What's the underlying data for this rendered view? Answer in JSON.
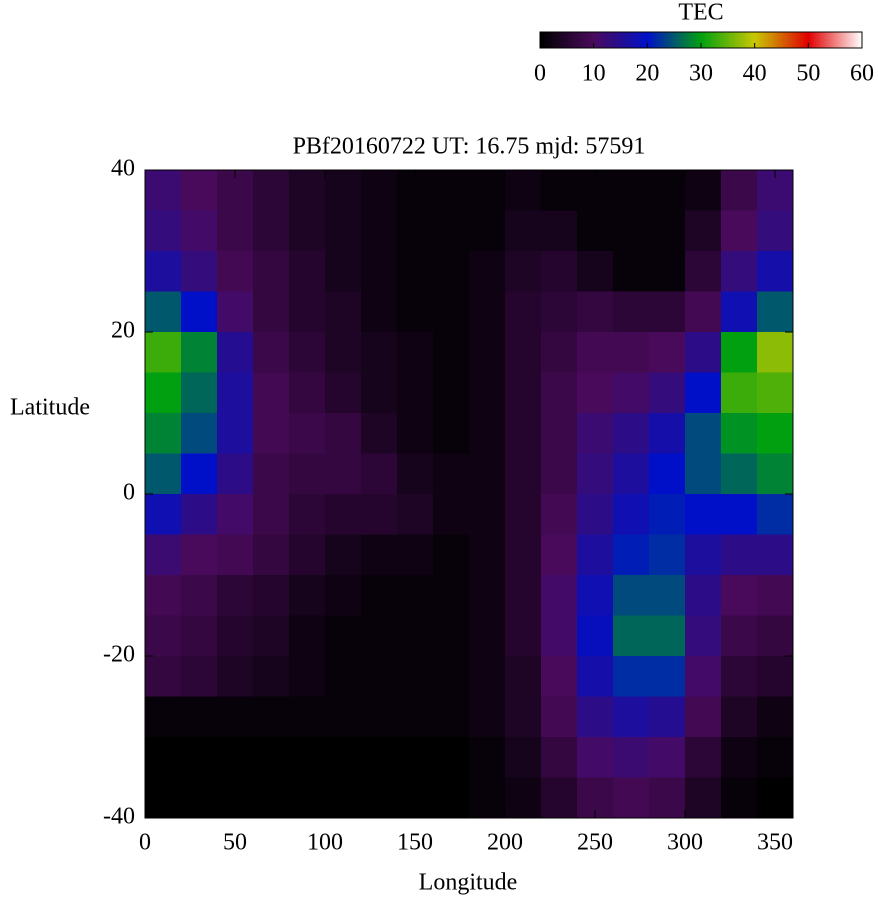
{
  "chart_data": {
    "type": "heatmap",
    "title": "PBf20160722  UT: 16.75  mjd: 57591",
    "xlabel": "Longitude",
    "ylabel": "Latitude",
    "x": [
      10,
      30,
      50,
      70,
      90,
      110,
      130,
      150,
      170,
      190,
      210,
      230,
      250,
      270,
      290,
      310,
      330,
      350
    ],
    "y": [
      37.5,
      32.5,
      27.5,
      22.5,
      17.5,
      12.5,
      7.5,
      2.5,
      -2.5,
      -7.5,
      -12.5,
      -17.5,
      -22.5,
      -27.5,
      -32.5,
      -37.5
    ],
    "z": [
      [
        12,
        10,
        8,
        6,
        4,
        3,
        2,
        1,
        1,
        1,
        2,
        1,
        1,
        1,
        1,
        2,
        8,
        12
      ],
      [
        13,
        11,
        8,
        6,
        4,
        3,
        2,
        1,
        1,
        1,
        3,
        3,
        1,
        1,
        1,
        4,
        10,
        13
      ],
      [
        16,
        13,
        9,
        7,
        5,
        3,
        2,
        1,
        1,
        2,
        4,
        5,
        3,
        1,
        1,
        6,
        13,
        17
      ],
      [
        25,
        20,
        11,
        7,
        5,
        4,
        2,
        1,
        1,
        2,
        5,
        6,
        7,
        6,
        6,
        9,
        18,
        25
      ],
      [
        33,
        28,
        15,
        8,
        6,
        4,
        3,
        2,
        1,
        2,
        5,
        7,
        9,
        9,
        10,
        14,
        30,
        37
      ],
      [
        30,
        26,
        16,
        9,
        7,
        5,
        3,
        2,
        1,
        2,
        5,
        8,
        10,
        11,
        13,
        20,
        33,
        34
      ],
      [
        28,
        24,
        16,
        9,
        8,
        7,
        4,
        2,
        1,
        2,
        5,
        8,
        12,
        14,
        17,
        24,
        29,
        30
      ],
      [
        25,
        20,
        14,
        8,
        7,
        7,
        6,
        3,
        2,
        2,
        5,
        8,
        13,
        16,
        20,
        24,
        26,
        28
      ],
      [
        18,
        14,
        11,
        8,
        6,
        5,
        5,
        4,
        2,
        2,
        5,
        9,
        14,
        18,
        21,
        20,
        20,
        22
      ],
      [
        12,
        10,
        9,
        7,
        5,
        3,
        2,
        2,
        1,
        2,
        5,
        10,
        16,
        21,
        22,
        16,
        14,
        14
      ],
      [
        9,
        8,
        6,
        5,
        3,
        2,
        1,
        1,
        1,
        2,
        5,
        11,
        18,
        24,
        24,
        14,
        10,
        9
      ],
      [
        8,
        7,
        5,
        4,
        2,
        1,
        1,
        1,
        1,
        2,
        5,
        11,
        19,
        26,
        26,
        13,
        8,
        7
      ],
      [
        7,
        6,
        4,
        3,
        2,
        1,
        1,
        1,
        1,
        2,
        4,
        10,
        17,
        22,
        22,
        11,
        6,
        5
      ],
      [
        1,
        1,
        1,
        1,
        1,
        1,
        1,
        1,
        1,
        2,
        4,
        9,
        14,
        16,
        15,
        9,
        4,
        2
      ],
      [
        0,
        0,
        0,
        0,
        0,
        0,
        0,
        0,
        0,
        1,
        3,
        7,
        11,
        12,
        11,
        6,
        2,
        1
      ],
      [
        0,
        0,
        0,
        0,
        0,
        0,
        0,
        0,
        0,
        1,
        2,
        5,
        8,
        9,
        8,
        4,
        1,
        0
      ]
    ],
    "xlim": [
      0,
      360
    ],
    "ylim": [
      -40,
      40
    ],
    "xticks": [
      0,
      50,
      100,
      150,
      200,
      250,
      300,
      350
    ],
    "yticks": [
      -40,
      -20,
      0,
      20,
      40
    ],
    "colorbar_label": "TEC",
    "clim": [
      0,
      60
    ],
    "cticks": [
      0,
      10,
      20,
      30,
      40,
      50,
      60
    ],
    "colormap": [
      "#000000",
      "#4a0a5c",
      "#0010c8",
      "#00a010",
      "#c8c800",
      "#e00000",
      "#ffffff"
    ]
  }
}
